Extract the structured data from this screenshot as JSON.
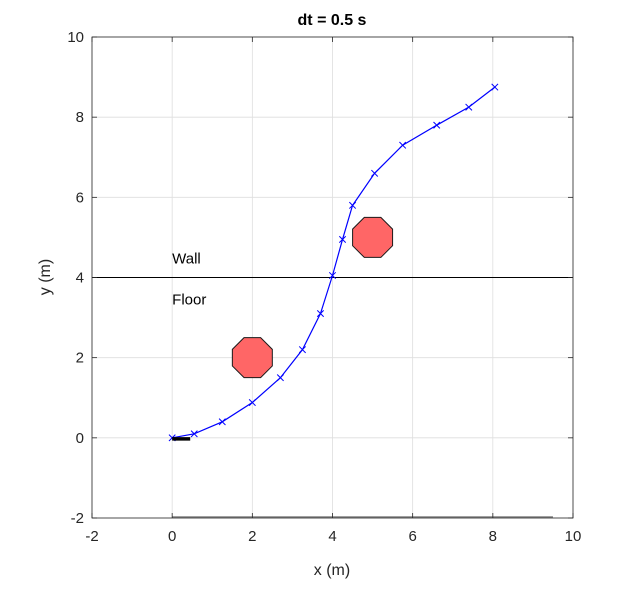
{
  "chart_data": {
    "type": "line",
    "title": "dt = 0.5 s",
    "xlabel": "x (m)",
    "ylabel": "y (m)",
    "xlim": [
      -2,
      10
    ],
    "ylim": [
      -2,
      10
    ],
    "xticks": [
      -2,
      0,
      2,
      4,
      6,
      8,
      10
    ],
    "yticks": [
      -2,
      0,
      2,
      4,
      6,
      8,
      10
    ],
    "xtick_labels": [
      "-2",
      "0",
      "2",
      "4",
      "6",
      "8",
      "10"
    ],
    "ytick_labels": [
      "-2",
      "0",
      "2",
      "4",
      "6",
      "8",
      "10"
    ],
    "grid": true,
    "series": [
      {
        "color": "#0000ff",
        "marker": "x",
        "x": [
          0.0,
          0.55,
          1.25,
          2.0,
          2.7,
          3.25,
          3.7,
          4.0,
          4.25,
          4.5,
          5.05,
          5.75,
          6.6,
          7.4,
          8.05
        ],
        "y": [
          0.0,
          0.1,
          0.4,
          0.88,
          1.5,
          2.2,
          3.1,
          4.05,
          4.95,
          5.8,
          6.6,
          7.3,
          7.8,
          8.25,
          8.75
        ]
      }
    ],
    "obstacles": [
      {
        "shape": "octagon",
        "cx": 2.0,
        "cy": 2.0,
        "r": 0.5,
        "color": "#ff6666"
      },
      {
        "shape": "octagon",
        "cx": 5.0,
        "cy": 5.0,
        "r": 0.5,
        "color": "#ff6666"
      }
    ],
    "boundary": {
      "y": 4.0,
      "above_label": "Wall",
      "below_label": "Floor",
      "label_x": 0.0
    },
    "start_marker": {
      "x0": 0.0,
      "x1": 0.45,
      "y": 0.0,
      "color": "#000000"
    },
    "floor_line": {
      "x0": 0.0,
      "x1": 9.5,
      "y": -2.0,
      "color": "#808080"
    }
  }
}
